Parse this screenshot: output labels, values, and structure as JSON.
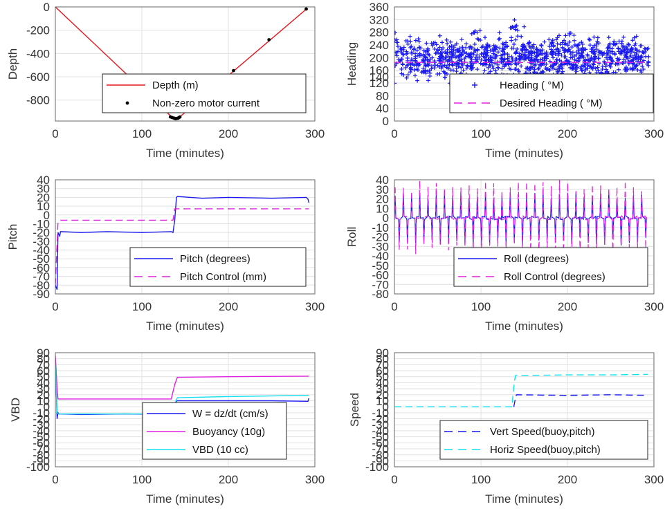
{
  "colors": {
    "red": "#e8151b",
    "blue": "#1a1af0",
    "magenta": "#e020e0",
    "cyan": "#10e0f0",
    "grid": "#e0e0e0",
    "frame": "#666666"
  },
  "chart_data": [
    {
      "id": "depth",
      "type": "line",
      "xlabel": "Time (minutes)",
      "ylabel": "Depth",
      "xlim": [
        0,
        300
      ],
      "ylim": [
        -980,
        0
      ],
      "xticks": [
        "0",
        "100",
        "200",
        "300"
      ],
      "yticks": [
        {
          "v": 0,
          "t": "0"
        },
        {
          "v": -200,
          "t": "-200"
        },
        {
          "v": -400,
          "t": "-400"
        },
        {
          "v": -600,
          "t": "-600"
        },
        {
          "v": -800,
          "t": "-800"
        }
      ],
      "grid": true,
      "legend": "bottom-center",
      "series": [
        {
          "name": "Depth (m)",
          "style": "line",
          "color": "red",
          "x": [
            0,
            136,
            139,
            143,
            290,
            292
          ],
          "y": [
            0,
            -955,
            -960,
            -950,
            -20,
            -15
          ]
        },
        {
          "name": "Non-zero motor current",
          "style": "dots",
          "color": "black",
          "x": [
            133,
            135,
            137,
            138,
            139,
            140,
            141,
            142,
            143,
            144,
            206,
            247,
            290
          ],
          "y": [
            -945,
            -950,
            -955,
            -957,
            -960,
            -958,
            -957,
            -955,
            -950,
            -945,
            -547,
            -282,
            -18
          ]
        }
      ]
    },
    {
      "id": "heading",
      "type": "scatter",
      "xlabel": "Time (minutes)",
      "ylabel": "Heading",
      "xlim": [
        0,
        300
      ],
      "ylim": [
        0,
        360
      ],
      "xticks": [
        "0",
        "100",
        "200",
        "300"
      ],
      "yticks": [
        {
          "v": 0,
          "t": "0"
        },
        {
          "v": 40,
          "t": "40"
        },
        {
          "v": 80,
          "t": "80"
        },
        {
          "v": 120,
          "t": "120"
        },
        {
          "v": 140,
          "t": "140"
        },
        {
          "v": 160,
          "t": "160"
        },
        {
          "v": 200,
          "t": "200"
        },
        {
          "v": 240,
          "t": "240"
        },
        {
          "v": 280,
          "t": "280"
        },
        {
          "v": 320,
          "t": "320"
        },
        {
          "v": 360,
          "t": "360"
        }
      ],
      "grid": true,
      "legend": "bottom-right",
      "series": [
        {
          "name": "Heading ( °M)",
          "style": "plus",
          "color": "blue",
          "generator": "heading_scatter",
          "range": [
            0,
            294
          ],
          "center": 195,
          "spread": 50,
          "peaks": [
            [
              2,
              320
            ],
            [
              95,
              295
            ],
            [
              138,
              320
            ],
            [
              146,
              315
            ],
            [
              201,
              290
            ],
            [
              255,
              255
            ],
            [
              290,
              245
            ]
          ]
        },
        {
          "name": "Desired Heading ( °M)",
          "style": "dash",
          "color": "magenta",
          "x": [
            0,
            294
          ],
          "y": [
            185,
            185
          ]
        }
      ]
    },
    {
      "id": "pitch",
      "type": "line",
      "xlabel": "Time (minutes)",
      "ylabel": "Pitch",
      "xlim": [
        0,
        300
      ],
      "ylim": [
        -90,
        40
      ],
      "xticks": [
        "0",
        "100",
        "200",
        "300"
      ],
      "yticks": [
        {
          "v": -90,
          "t": "-90"
        },
        {
          "v": -80,
          "t": "-80"
        },
        {
          "v": -70,
          "t": "-70"
        },
        {
          "v": -60,
          "t": "-60"
        },
        {
          "v": -50,
          "t": "-50"
        },
        {
          "v": -40,
          "t": "-40"
        },
        {
          "v": -30,
          "t": "-30"
        },
        {
          "v": -20,
          "t": "-20"
        },
        {
          "v": -10,
          "t": "-10"
        },
        {
          "v": 0,
          "t": "0"
        },
        {
          "v": 10,
          "t": "10"
        },
        {
          "v": 20,
          "t": "20"
        },
        {
          "v": 30,
          "t": "30"
        },
        {
          "v": 40,
          "t": "40"
        }
      ],
      "grid": true,
      "legend": "bottom-right",
      "series": [
        {
          "name": "Pitch (degrees)",
          "style": "line",
          "color": "blue",
          "x": [
            0,
            2,
            3,
            4,
            5,
            6,
            30,
            60,
            100,
            134,
            136,
            138,
            140,
            141,
            170,
            200,
            250,
            290,
            292,
            293
          ],
          "y": [
            -80,
            -85,
            -20,
            -22,
            -24,
            -19,
            -20,
            -19,
            -20,
            -19,
            -20,
            -6,
            20,
            21,
            19,
            20,
            19,
            20,
            18,
            14
          ]
        },
        {
          "name": "Pitch Control (mm)",
          "style": "dash",
          "color": "magenta",
          "x": [
            0,
            3,
            5,
            136,
            138,
            293
          ],
          "y": [
            -80,
            -8,
            -6,
            -6,
            7,
            7
          ]
        }
      ]
    },
    {
      "id": "roll",
      "type": "line",
      "xlabel": "Time (minutes)",
      "ylabel": "Roll",
      "xlim": [
        0,
        300
      ],
      "ylim": [
        -80,
        40
      ],
      "xticks": [
        "0",
        "100",
        "200",
        "300"
      ],
      "yticks": [
        {
          "v": -80,
          "t": "-80"
        },
        {
          "v": -70,
          "t": "-70"
        },
        {
          "v": -60,
          "t": "-60"
        },
        {
          "v": -50,
          "t": "-50"
        },
        {
          "v": -40,
          "t": "-40"
        },
        {
          "v": -30,
          "t": "-30"
        },
        {
          "v": -20,
          "t": "-20"
        },
        {
          "v": -10,
          "t": "-10"
        },
        {
          "v": 0,
          "t": "0"
        },
        {
          "v": 10,
          "t": "10"
        },
        {
          "v": 20,
          "t": "20"
        },
        {
          "v": 30,
          "t": "30"
        },
        {
          "v": 40,
          "t": "40"
        }
      ],
      "grid": true,
      "legend": "bottom-right",
      "series": [
        {
          "name": "Roll (degrees)",
          "style": "spikes",
          "color": "blue",
          "range": [
            0,
            294
          ],
          "period": 9.5,
          "amplitude": 28,
          "base": 0
        },
        {
          "name": "Roll Control (degrees)",
          "style": "spikes-dash",
          "color": "magenta",
          "range": [
            0,
            294
          ],
          "period": 9.5,
          "amplitude": 40,
          "base": 0
        }
      ]
    },
    {
      "id": "vbd",
      "type": "line",
      "xlabel": "Time (minutes)",
      "ylabel": "VBD",
      "xlim": [
        0,
        300
      ],
      "ylim": [
        -100,
        90
      ],
      "xticks": [
        "0",
        "100",
        "200",
        "300"
      ],
      "yticks": [
        {
          "v": -100,
          "t": "-100"
        },
        {
          "v": -90,
          "t": "-90"
        },
        {
          "v": -80,
          "t": "-80"
        },
        {
          "v": -70,
          "t": "-70"
        },
        {
          "v": -60,
          "t": "-60"
        },
        {
          "v": -50,
          "t": "-50"
        },
        {
          "v": -40,
          "t": "-40"
        },
        {
          "v": -30,
          "t": "-30"
        },
        {
          "v": -20,
          "t": "-20"
        },
        {
          "v": -10,
          "t": "-10"
        },
        {
          "v": 0,
          "t": "0"
        },
        {
          "v": 10,
          "t": "10"
        },
        {
          "v": 20,
          "t": "20"
        },
        {
          "v": 30,
          "t": "30"
        },
        {
          "v": 40,
          "t": "40"
        },
        {
          "v": 50,
          "t": "50"
        },
        {
          "v": 60,
          "t": "60"
        },
        {
          "v": 70,
          "t": "70"
        },
        {
          "v": 80,
          "t": "80"
        },
        {
          "v": 90,
          "t": "90"
        }
      ],
      "grid": true,
      "legend": "bottom-right",
      "series": [
        {
          "name": "W = dz/dt (cm/s)",
          "style": "line",
          "color": "blue",
          "x": [
            0,
            2,
            3,
            4,
            30,
            80,
            134,
            137,
            140,
            141,
            200,
            250,
            292,
            293
          ],
          "y": [
            80,
            -20,
            -10,
            -12,
            -13,
            -12,
            -13,
            -5,
            9,
            10,
            10,
            10,
            9,
            14
          ]
        },
        {
          "name": "Buoyancy (10g)",
          "style": "line",
          "color": "magenta",
          "x": [
            0,
            2,
            3,
            134,
            138,
            141,
            200,
            293
          ],
          "y": [
            85,
            30,
            13,
            13,
            37,
            49,
            50,
            51
          ]
        },
        {
          "name": "VBD (10 cc)",
          "style": "line",
          "color": "cyan",
          "x": [
            0,
            2,
            3,
            134,
            138,
            141,
            200,
            293
          ],
          "y": [
            70,
            -10,
            -12,
            -12,
            5,
            15,
            17,
            19
          ]
        }
      ]
    },
    {
      "id": "speed",
      "type": "line",
      "xlabel": "Time (minutes)",
      "ylabel": "Speed",
      "xlim": [
        0,
        300
      ],
      "ylim": [
        -100,
        90
      ],
      "xticks": [
        "0",
        "100",
        "200",
        "300"
      ],
      "yticks": [
        {
          "v": -100,
          "t": "-100"
        },
        {
          "v": -90,
          "t": "-90"
        },
        {
          "v": -80,
          "t": "-80"
        },
        {
          "v": -70,
          "t": "-70"
        },
        {
          "v": -60,
          "t": "-60"
        },
        {
          "v": -50,
          "t": "-50"
        },
        {
          "v": -40,
          "t": "-40"
        },
        {
          "v": -30,
          "t": "-30"
        },
        {
          "v": -20,
          "t": "-20"
        },
        {
          "v": -10,
          "t": "-10"
        },
        {
          "v": 0,
          "t": "0"
        },
        {
          "v": 10,
          "t": "10"
        },
        {
          "v": 20,
          "t": "20"
        },
        {
          "v": 30,
          "t": "30"
        },
        {
          "v": 40,
          "t": "40"
        },
        {
          "v": 50,
          "t": "50"
        },
        {
          "v": 60,
          "t": "60"
        },
        {
          "v": 70,
          "t": "70"
        },
        {
          "v": 80,
          "t": "80"
        },
        {
          "v": 90,
          "t": "90"
        }
      ],
      "grid": true,
      "legend": "bottom-right",
      "series": [
        {
          "name": "Vert Speed(buoy,pitch)",
          "style": "dash",
          "color": "blue",
          "x": [
            138,
            140,
            141,
            200,
            250,
            293
          ],
          "y": [
            0,
            15,
            20,
            19,
            20,
            19
          ]
        },
        {
          "name": "Horiz Speed(buoy,pitch)",
          "style": "dash",
          "color": "cyan",
          "x": [
            0,
            136,
            137,
            139,
            140,
            200,
            250,
            293
          ],
          "y": [
            0,
            0,
            20,
            45,
            52,
            53,
            53,
            54
          ]
        }
      ]
    }
  ]
}
